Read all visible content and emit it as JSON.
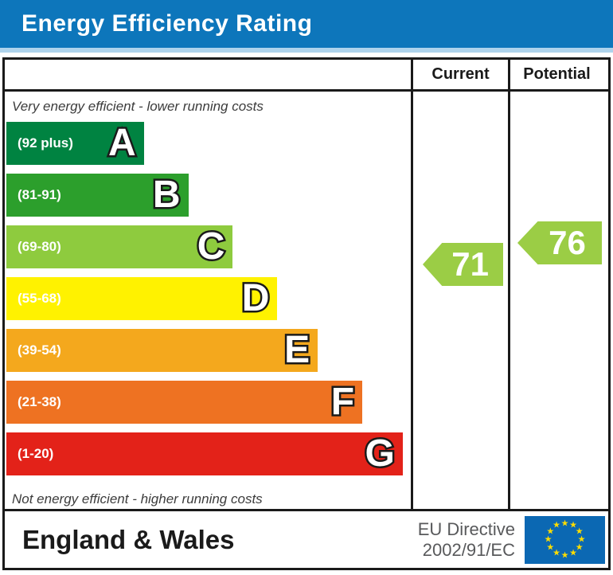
{
  "title": "Energy Efficiency Rating",
  "table": {
    "columns": [
      "Current",
      "Potential"
    ]
  },
  "chart_data": {
    "type": "bar",
    "title": "Energy Efficiency Rating",
    "top_note": "Very energy efficient - lower running costs",
    "bottom_note": "Not energy efficient - higher running costs",
    "bands": [
      {
        "letter": "A",
        "range_label": "(92 plus)",
        "range": [
          92,
          100
        ],
        "color": "#008341",
        "width_pct": 34
      },
      {
        "letter": "B",
        "range_label": "(81-91)",
        "range": [
          81,
          91
        ],
        "color": "#2c9f2c",
        "width_pct": 45
      },
      {
        "letter": "C",
        "range_label": "(69-80)",
        "range": [
          69,
          80
        ],
        "color": "#8ecb3e",
        "width_pct": 56
      },
      {
        "letter": "D",
        "range_label": "(55-68)",
        "range": [
          55,
          68
        ],
        "color": "#fff200",
        "width_pct": 67
      },
      {
        "letter": "E",
        "range_label": "(39-54)",
        "range": [
          39,
          54
        ],
        "color": "#f4a81d",
        "width_pct": 77
      },
      {
        "letter": "F",
        "range_label": "(21-38)",
        "range": [
          21,
          38
        ],
        "color": "#ee7222",
        "width_pct": 88
      },
      {
        "letter": "G",
        "range_label": "(1-20)",
        "range": [
          1,
          20
        ],
        "color": "#e32219",
        "width_pct": 98
      }
    ],
    "current": {
      "value": 71,
      "band": "C",
      "color": "#9bcd45"
    },
    "potential": {
      "value": 76,
      "band": "C",
      "color": "#9bcd45"
    }
  },
  "footer": {
    "region": "England & Wales",
    "directive_line1": "EU Directive",
    "directive_line2": "2002/91/EC"
  },
  "colors": {
    "title_bg": "#0d76bb",
    "title_strip": "#aed3ec",
    "border": "#1a1a1a",
    "eu_flag_blue": "#0b68b3",
    "eu_star_yellow": "#ffdd00",
    "directive_text": "#58595b"
  }
}
